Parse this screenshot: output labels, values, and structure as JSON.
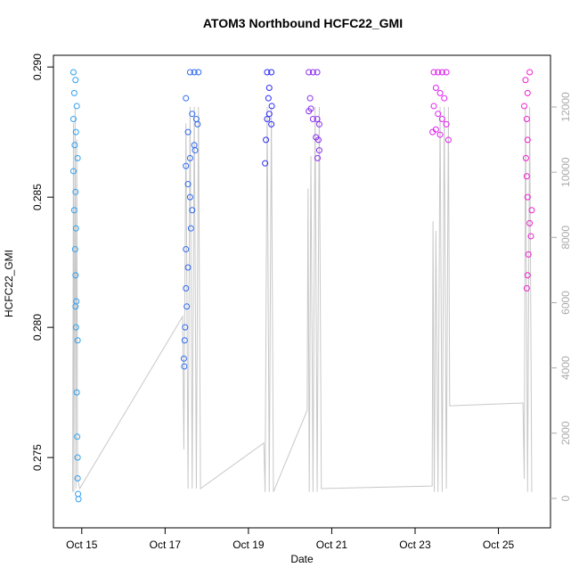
{
  "chart_data": {
    "type": "scatter",
    "title": "ATOM3 Northbound HCFC22_GMI",
    "x_label": "Date",
    "y_label": "HCFC22_GMI",
    "xlim": [
      14.32,
      26.25
    ],
    "xticks": [
      {
        "value": 15,
        "label": "Oct 15"
      },
      {
        "value": 17,
        "label": "Oct 17"
      },
      {
        "value": 19,
        "label": "Oct 19"
      },
      {
        "value": 21,
        "label": "Oct 21"
      },
      {
        "value": 23,
        "label": "Oct 23"
      },
      {
        "value": 25,
        "label": "Oct 25"
      }
    ],
    "ylim": [
      0.2723,
      0.29045
    ],
    "yticks": [
      0.275,
      {
        "value": 0.28,
        "label": "0.280"
      },
      0.285,
      {
        "value": 0.29,
        "label": "0.290"
      }
    ],
    "y2lim": [
      -902,
      13585
    ],
    "y2ticks": [
      0,
      2000,
      4000,
      6000,
      8000,
      10000,
      12000
    ],
    "series": [
      {
        "color": "#30a0f0",
        "x": [
          14.8,
          14.85,
          14.82,
          14.88,
          14.8,
          14.86,
          14.83,
          14.9,
          14.8,
          14.85,
          14.82,
          14.86,
          14.84,
          14.85,
          14.87,
          14.86,
          14.9,
          14.88,
          14.89,
          14.9,
          14.9,
          14.91,
          14.92,
          14.85
        ],
        "values": [
          0.2898,
          0.2895,
          0.289,
          0.2885,
          0.288,
          0.2875,
          0.287,
          0.2865,
          0.286,
          0.2852,
          0.2845,
          0.2838,
          0.283,
          0.282,
          0.281,
          0.28,
          0.2795,
          0.2775,
          0.2758,
          0.275,
          0.2742,
          0.2736,
          0.2734,
          0.2808
        ]
      },
      {
        "color": "#2e6af0",
        "x": [
          17.6,
          17.7,
          17.8,
          17.5,
          17.65,
          17.75,
          17.55,
          17.7,
          17.6,
          17.5,
          17.55,
          17.6,
          17.65,
          17.62,
          17.5,
          17.55,
          17.5,
          17.52,
          17.48,
          17.47,
          17.45,
          17.46,
          17.78,
          17.72
        ],
        "values": [
          0.2898,
          0.2898,
          0.2898,
          0.2888,
          0.2882,
          0.288,
          0.2875,
          0.287,
          0.2865,
          0.2862,
          0.2855,
          0.285,
          0.2845,
          0.2838,
          0.283,
          0.2823,
          0.2815,
          0.2808,
          0.28,
          0.2795,
          0.2788,
          0.2785,
          0.2878,
          0.2868
        ]
      },
      {
        "color": "#2a2af5",
        "x": [
          19.45,
          19.55,
          19.5,
          19.48,
          19.56,
          19.5,
          19.45,
          19.55,
          19.42,
          19.4
        ],
        "values": [
          0.2898,
          0.2898,
          0.2892,
          0.2888,
          0.2885,
          0.2882,
          0.288,
          0.2878,
          0.2872,
          0.2863
        ]
      },
      {
        "color": "#8a2ef0",
        "x": [
          20.45,
          20.55,
          20.65,
          20.48,
          20.5,
          20.55,
          20.45,
          20.65,
          20.7,
          20.68,
          20.66,
          20.62,
          20.7
        ],
        "values": [
          0.2898,
          0.2898,
          0.2898,
          0.2888,
          0.2884,
          0.288,
          0.2883,
          0.288,
          0.2878,
          0.2872,
          0.2865,
          0.2873,
          0.2868
        ]
      },
      {
        "color": "#e020f0",
        "x": [
          23.45,
          23.55,
          23.65,
          23.75,
          23.5,
          23.6,
          23.7,
          23.45,
          23.55,
          23.65,
          23.75,
          23.5,
          23.6,
          23.8,
          23.42
        ],
        "values": [
          0.2898,
          0.2898,
          0.2898,
          0.2898,
          0.2892,
          0.289,
          0.2888,
          0.2885,
          0.2882,
          0.288,
          0.2878,
          0.2876,
          0.2874,
          0.2872,
          0.2875
        ]
      },
      {
        "color": "#f020d0",
        "x": [
          25.75,
          25.65,
          25.7,
          25.62,
          25.68,
          25.7,
          25.66,
          25.68,
          25.7,
          25.75,
          25.78,
          25.72,
          25.7,
          25.68,
          25.8
        ],
        "values": [
          0.2898,
          0.2895,
          0.289,
          0.2885,
          0.288,
          0.2872,
          0.2865,
          0.2858,
          0.285,
          0.284,
          0.2835,
          0.2828,
          0.282,
          0.2815,
          0.2845
        ]
      },
      {
        "color": "#c8c8c8",
        "axis": "y2",
        "x": [
          14.78,
          14.8,
          14.81,
          14.84,
          14.86,
          14.88,
          14.9,
          14.95,
          17.42,
          17.45,
          17.5,
          17.55,
          17.6,
          17.65,
          17.7,
          17.75,
          17.8,
          17.85,
          19.37,
          19.4,
          19.45,
          19.5,
          19.55,
          19.6,
          20.41,
          20.43,
          20.46,
          20.5,
          20.55,
          20.6,
          20.65,
          20.7,
          20.75,
          23.41,
          23.43,
          23.46,
          23.5,
          23.55,
          23.6,
          23.65,
          23.7,
          23.75,
          23.8,
          23.83,
          25.59,
          25.62,
          25.65,
          25.7,
          25.75,
          25.8
        ],
        "values": [
          200,
          11500,
          200,
          12000,
          300,
          11000,
          600,
          300,
          5576,
          1500,
          11500,
          300,
          12000,
          300,
          12000,
          300,
          12000,
          300,
          1700,
          200,
          12000,
          200,
          12000,
          200,
          2700,
          9500,
          200,
          10500,
          200,
          12000,
          200,
          12000,
          300,
          380,
          8500,
          200,
          8200,
          200,
          12000,
          200,
          12000,
          300,
          12000,
          2840,
          2925,
          600,
          12000,
          200,
          12000,
          200
        ]
      }
    ]
  }
}
